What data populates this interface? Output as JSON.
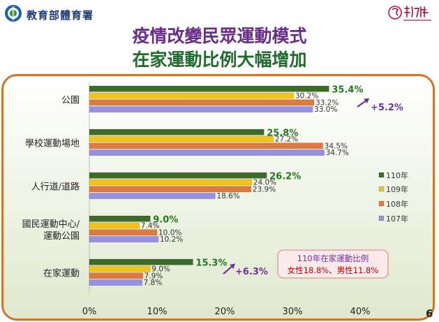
{
  "header": {
    "org_name": "教育部體育署",
    "logo_left_icon": "moe-seal-icon",
    "logo_right_icon": "shih-hsin-university-logo-icon"
  },
  "title": {
    "line1": "疫情改變民眾運動模式",
    "line2": "在家運動比例大幅增加"
  },
  "page_number": "6",
  "note": {
    "line1": "110年在家運動比例",
    "line2_female": "女性18.8%",
    "line2_sep": "、",
    "line2_male": "男性11.8%"
  },
  "colors": {
    "110": "#3d6b2a",
    "109": "#f0c419",
    "108": "#e07a3c",
    "107": "#9a8fe6",
    "label_highlight": "#1f7a1f",
    "annotation": "#7030a0",
    "note_border": "#e89090",
    "note_female": "#c00000"
  },
  "chart_data": {
    "type": "bar",
    "orientation": "horizontal",
    "categories": [
      "公園",
      "學校運動場地",
      "人行道/道路",
      "國民運動中心/運動公園",
      "在家運動"
    ],
    "category_lines": [
      [
        "公園"
      ],
      [
        "學校運動場地"
      ],
      [
        "人行道/道路"
      ],
      [
        "國民運動中心/",
        "運動公園"
      ],
      [
        "在家運動"
      ]
    ],
    "series": [
      {
        "name": "110年",
        "values": [
          35.4,
          25.8,
          26.2,
          9.0,
          15.3
        ],
        "labels": [
          "35.4%",
          "25.8%",
          "26.2%",
          "9.0%",
          "15.3%"
        ]
      },
      {
        "name": "109年",
        "values": [
          30.2,
          27.2,
          24.0,
          7.4,
          9.0
        ],
        "labels": [
          "30.2%",
          "27.2%",
          "24.0%",
          "7.4%",
          "9.0%"
        ]
      },
      {
        "name": "108年",
        "values": [
          33.2,
          34.5,
          23.9,
          10.0,
          7.9
        ],
        "labels": [
          "33.2%",
          "34.5%",
          "23.9%",
          "10.0%",
          "7.9%"
        ]
      },
      {
        "name": "107年",
        "values": [
          33.0,
          34.7,
          18.6,
          10.2,
          7.8
        ],
        "labels": [
          "33.0%",
          "34.7%",
          "18.6%",
          "10.2%",
          "7.8%"
        ]
      }
    ],
    "xlim": [
      0,
      40
    ],
    "ticks": [
      0,
      10,
      20,
      30,
      40
    ],
    "tick_labels": [
      "0%",
      "10%",
      "20%",
      "30%",
      "40%"
    ],
    "annotations": [
      {
        "category": "公園",
        "text": "+5.2%"
      },
      {
        "category": "在家運動",
        "text": "+6.3%"
      }
    ],
    "legend_position": "right",
    "grid": false
  }
}
